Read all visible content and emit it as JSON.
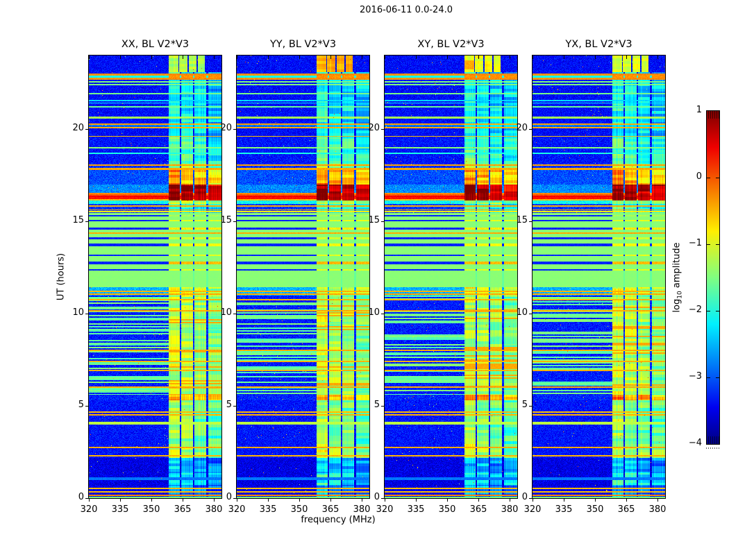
{
  "figure": {
    "title": "2016-06-11 0.0-24.0",
    "background": "#ffffff"
  },
  "axes": {
    "xlabel": "frequency (MHz)",
    "ylabel": "UT (hours)",
    "xtick_labels": [
      "320",
      "335",
      "350",
      "365",
      "380"
    ],
    "ytick_labels": [
      "20",
      "15",
      "10",
      "5",
      "0"
    ]
  },
  "colorbar": {
    "label_prefix": "log",
    "label_sub": "10",
    "label_suffix": " amplitude",
    "tick_labels": [
      "1",
      "0",
      "−1",
      "−2",
      "−3",
      "−4"
    ],
    "vmin": -4,
    "vmax": 1,
    "cmap": "jet"
  },
  "chart_data": {
    "type": "heatmap",
    "title": "2016-06-11 0.0-24.0",
    "xlabel": "frequency (MHz)",
    "ylabel": "UT (hours)",
    "xlim": [
      320,
      383.7
    ],
    "ylim": [
      0,
      24
    ],
    "xticks": [
      320,
      335,
      350,
      365,
      380
    ],
    "yticks": [
      0,
      5,
      10,
      15,
      20
    ],
    "colorbar": {
      "label": "log10 amplitude",
      "ticks": [
        1,
        0,
        -1,
        -2,
        -3,
        -4
      ],
      "cmap": "jet",
      "vmin": -4,
      "vmax": 1
    },
    "panels": [
      {
        "title": "XX, BL V2*V3",
        "seed": 11,
        "top_blocks_level": -1.25
      },
      {
        "title": "YY, BL V2*V3",
        "seed": 22,
        "top_blocks_level": -0.5
      },
      {
        "title": "XY, BL V2*V3",
        "seed": 33,
        "top_blocks_level": -0.95,
        "top_patch_level": -0.45
      },
      {
        "title": "YX, BL V2*V3",
        "seed": 44,
        "top_blocks_level": -1.05
      }
    ],
    "rfi_subbands_mhz": [
      [
        358.2,
        363.6
      ],
      [
        364.3,
        369.9
      ],
      [
        370.6,
        376.4
      ],
      [
        377.2,
        383.66
      ]
    ],
    "rfi_subband_gain": [
      0.12,
      0,
      -0.08,
      -0.28
    ],
    "top_blocks_mhz": [
      [
        358.4,
        362.9
      ],
      [
        363.5,
        367.4
      ],
      [
        368.0,
        371.6
      ],
      [
        372.2,
        375.8
      ]
    ],
    "top_blocks_trange": [
      23.08,
      24.0
    ],
    "band_profile": [
      [
        0.22,
        -0.55
      ],
      [
        0.45,
        0.3
      ],
      [
        0.62,
        0.42
      ],
      [
        0.82,
        -0.05
      ],
      [
        1.01,
        -0.3
      ]
    ],
    "regions": [
      {
        "t0": 0.0,
        "t1": 0.7,
        "bg": -3.5,
        "rfi": -2.7
      },
      {
        "t0": 0.7,
        "t1": 1.35,
        "bg": -3.5,
        "rfi": -2.05
      },
      {
        "t0": 1.35,
        "t1": 2.2,
        "bg": -3.5,
        "rfi": -2.5
      },
      {
        "t0": 2.2,
        "t1": 2.95,
        "bg": -3.3,
        "rfi": -1.25
      },
      {
        "t0": 2.95,
        "t1": 5.3,
        "bg": -3.3,
        "rfi": -1.5
      },
      {
        "t0": 5.3,
        "t1": 5.62,
        "bg": -3.2,
        "rfi": -0.45
      },
      {
        "t0": 5.62,
        "t1": 11.0,
        "bg": -3.25,
        "rfi": -1.3,
        "stripes": true
      },
      {
        "t0": 11.0,
        "t1": 11.45,
        "bg": -2.5,
        "rfi": -1.1
      },
      {
        "t0": 11.45,
        "t1": 15.45,
        "bg": -1.45,
        "rfi": -1.45,
        "flag": true
      },
      {
        "t0": 15.45,
        "t1": 15.95,
        "bg": -3.1,
        "rfi": -1.9
      },
      {
        "t0": 15.95,
        "t1": 16.12,
        "bg": -2.1,
        "rfi": -1.3
      },
      {
        "t0": 16.12,
        "t1": 16.55,
        "bg": -0.3,
        "rfi": 0.82,
        "band": true
      },
      {
        "t0": 16.55,
        "t1": 17.0,
        "bg": -2.7,
        "rfi": 0.82
      },
      {
        "t0": 17.0,
        "t1": 17.78,
        "bg": -3.0,
        "rfi": -0.5
      },
      {
        "t0": 17.78,
        "t1": 18.15,
        "bg": -3.15,
        "rfi": -1.4
      },
      {
        "t0": 18.15,
        "t1": 19.55,
        "bg": -3.3,
        "rfi": -1.8
      },
      {
        "t0": 19.55,
        "t1": 23.08,
        "bg": -3.35,
        "rfi": -2.15
      },
      {
        "t0": 23.08,
        "t1": 24.01,
        "bg": -3.35,
        "rfi": -1.2,
        "top": true
      }
    ],
    "lines": [
      {
        "t": 0.04,
        "w": 0.1,
        "lv": -1.5
      },
      {
        "t": 0.14,
        "w": 0.08,
        "lv": -0.3
      },
      {
        "t": 0.34,
        "w": 0.08,
        "lv": -0.55
      },
      {
        "t": 0.53,
        "w": 0.08,
        "lv": -0.55
      },
      {
        "t": 1.05,
        "w": 0.18,
        "lv": -2.8
      },
      {
        "t": 2.29,
        "w": 0.08,
        "lv": -0.5
      },
      {
        "t": 2.74,
        "w": 0.09,
        "lv": -0.45
      },
      {
        "t": 4.06,
        "w": 0.14,
        "lv": -1.2
      },
      {
        "t": 4.51,
        "w": 0.08,
        "lv": -0.5
      },
      {
        "t": 4.66,
        "w": 0.08,
        "lv": -0.55
      },
      {
        "t": 6.02,
        "w": 0.08,
        "lv": -0.45
      },
      {
        "t": 6.92,
        "w": 0.08,
        "lv": -0.5
      },
      {
        "t": 7.41,
        "w": 0.08,
        "lv": -0.5
      },
      {
        "t": 8.01,
        "w": 0.08,
        "lv": -0.45
      },
      {
        "t": 10.16,
        "w": 0.08,
        "lv": -0.45
      },
      {
        "t": 10.76,
        "w": 0.08,
        "lv": -0.5
      },
      {
        "t": 11.06,
        "w": 0.08,
        "lv": -0.45
      },
      {
        "t": 11.2,
        "w": 0.07,
        "lv": -0.5
      },
      {
        "t": 12.37,
        "w": 0.1,
        "lv": -3.2,
        "rfi": -1.0
      },
      {
        "t": 12.75,
        "w": 0.16,
        "lv": -3.2,
        "rfi": -0.55
      },
      {
        "t": 13.17,
        "w": 0.1,
        "lv": -3.2,
        "rfi": -1.0
      },
      {
        "t": 13.73,
        "w": 0.12,
        "lv": -3.2,
        "rfi": -0.9
      },
      {
        "t": 14.1,
        "w": 0.1,
        "lv": -3.2,
        "rfi": -1.1
      },
      {
        "t": 14.37,
        "w": 0.08,
        "lv": -0.45
      },
      {
        "t": 14.6,
        "w": 0.12,
        "lv": -3.2,
        "rfi": -0.8
      },
      {
        "t": 15.05,
        "w": 0.1,
        "lv": -3.2,
        "rfi": -1.0
      },
      {
        "t": 15.32,
        "w": 0.08,
        "lv": -3.2,
        "rfi": -1.3
      },
      {
        "t": 15.52,
        "w": 0.08,
        "lv": -0.8
      },
      {
        "t": 15.63,
        "w": 0.07,
        "lv": -0.45
      },
      {
        "t": 15.85,
        "w": 0.07,
        "lv": -0.45
      },
      {
        "t": 17.85,
        "w": 0.08,
        "lv": -0.45
      },
      {
        "t": 18.05,
        "w": 0.08,
        "lv": -0.4
      },
      {
        "t": 18.7,
        "w": 0.08,
        "lv": -2.0
      },
      {
        "t": 19.0,
        "w": 0.09,
        "lv": -1.45
      },
      {
        "t": 19.62,
        "w": 0.07,
        "lv": -0.6
      },
      {
        "t": 20.1,
        "w": 0.07,
        "lv": -0.5
      },
      {
        "t": 20.18,
        "w": 0.06,
        "lv": -2.2
      },
      {
        "t": 20.27,
        "w": 0.07,
        "lv": -0.5
      },
      {
        "t": 20.62,
        "w": 0.12,
        "lv": -1.3
      },
      {
        "t": 21.2,
        "w": 0.08,
        "lv": -1.6
      },
      {
        "t": 21.42,
        "w": 0.06,
        "lv": -2.25
      },
      {
        "t": 21.56,
        "w": 0.06,
        "lv": -2.3
      },
      {
        "t": 21.92,
        "w": 0.08,
        "lv": -1.55
      },
      {
        "t": 22.42,
        "w": 0.07,
        "lv": -1.5
      },
      {
        "t": 22.56,
        "w": 0.07,
        "lv": -1.5
      },
      {
        "t": 22.73,
        "w": 0.1,
        "lv": -0.35,
        "rfi": -0.3
      },
      {
        "t": 22.85,
        "w": 0.12,
        "lv": -2.1,
        "rfi": -0.35
      },
      {
        "t": 22.97,
        "w": 0.1,
        "lv": -0.35,
        "rfi": -0.3
      }
    ]
  }
}
